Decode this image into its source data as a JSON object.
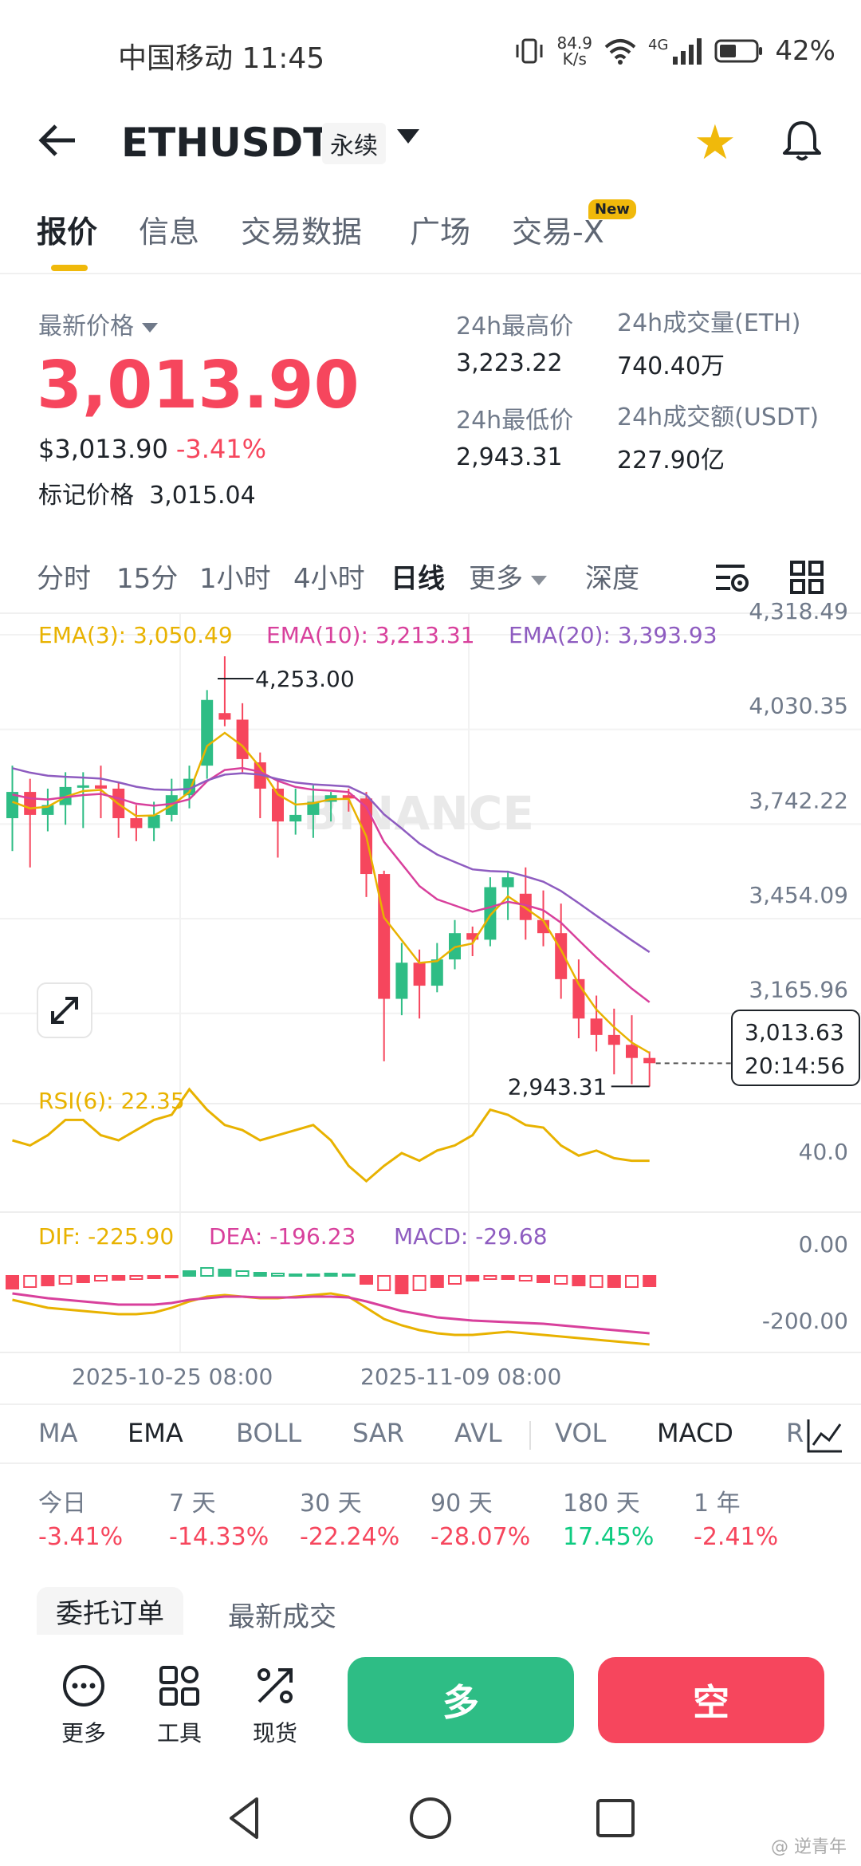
{
  "status_bar": {
    "carrier_time": "中国移动 11:45",
    "net_speed_value": "84.9",
    "net_speed_unit": "K/s",
    "network": "4G",
    "battery": "42%"
  },
  "header": {
    "symbol": "ETHUSDT",
    "contract_type": "永续"
  },
  "tabs": [
    {
      "label": "报价"
    },
    {
      "label": "信息"
    },
    {
      "label": "交易数据"
    },
    {
      "label": "广场"
    },
    {
      "label": "交易-X"
    }
  ],
  "new_badge": "New",
  "price": {
    "latest_label": "最新价格",
    "last_price": "3,013.90",
    "usd_price": "$3,013.90",
    "change": "-3.41%",
    "mark_label": "标记价格",
    "mark_price": "3,015.04"
  },
  "stats": {
    "high_label": "24h最高价",
    "high": "3,223.22",
    "low_label": "24h最低价",
    "low": "2,943.31",
    "vol_label": "24h成交量(ETH)",
    "vol": "740.40万",
    "turnover_label": "24h成交额(USDT)",
    "turnover": "227.90亿"
  },
  "intervals": [
    "分时",
    "15分",
    "1小时",
    "4小时",
    "日线",
    "更多",
    "深度"
  ],
  "chart_data": {
    "type": "candlestick",
    "interval": "日线",
    "price_axis_ticks": [
      "4,318.49",
      "4,030.35",
      "3,742.22",
      "3,454.09",
      "3,165.96"
    ],
    "ylim": [
      2920,
      4318.49
    ],
    "ema_labels": {
      "ema3": "EMA(3): 3,050.49",
      "ema10": "EMA(10): 3,213.31",
      "ema20": "EMA(20): 3,393.93"
    },
    "high_annotation": "4,253.00",
    "low_annotation": "2,943.31",
    "current_price_tag": "3,013.63",
    "countdown": "20:14:56",
    "watermark": "BINANCE",
    "candles": [
      {
        "o": 3760,
        "c": 3840,
        "h": 3920,
        "l": 3660
      },
      {
        "o": 3840,
        "c": 3770,
        "h": 3880,
        "l": 3610
      },
      {
        "o": 3770,
        "c": 3800,
        "h": 3850,
        "l": 3720
      },
      {
        "o": 3800,
        "c": 3855,
        "h": 3900,
        "l": 3740
      },
      {
        "o": 3855,
        "c": 3860,
        "h": 3900,
        "l": 3730
      },
      {
        "o": 3860,
        "c": 3850,
        "h": 3920,
        "l": 3760
      },
      {
        "o": 3850,
        "c": 3760,
        "h": 3870,
        "l": 3700
      },
      {
        "o": 3760,
        "c": 3730,
        "h": 3800,
        "l": 3690
      },
      {
        "o": 3730,
        "c": 3770,
        "h": 3810,
        "l": 3690
      },
      {
        "o": 3770,
        "c": 3830,
        "h": 3880,
        "l": 3750
      },
      {
        "o": 3830,
        "c": 3880,
        "h": 3920,
        "l": 3790
      },
      {
        "o": 3920,
        "c": 4120,
        "h": 4150,
        "l": 3880
      },
      {
        "o": 4080,
        "c": 4060,
        "h": 4253,
        "l": 4040
      },
      {
        "o": 4060,
        "c": 3940,
        "h": 4110,
        "l": 3900
      },
      {
        "o": 3930,
        "c": 3850,
        "h": 3960,
        "l": 3760
      },
      {
        "o": 3850,
        "c": 3750,
        "h": 3880,
        "l": 3640
      },
      {
        "o": 3750,
        "c": 3770,
        "h": 3850,
        "l": 3710
      },
      {
        "o": 3770,
        "c": 3810,
        "h": 3860,
        "l": 3700
      },
      {
        "o": 3810,
        "c": 3830,
        "h": 3840,
        "l": 3750
      },
      {
        "o": 3830,
        "c": 3820,
        "h": 3850,
        "l": 3780
      },
      {
        "o": 3820,
        "c": 3590,
        "h": 3840,
        "l": 3520
      },
      {
        "o": 3590,
        "c": 3210,
        "h": 3600,
        "l": 3020
      },
      {
        "o": 3210,
        "c": 3320,
        "h": 3380,
        "l": 3160
      },
      {
        "o": 3320,
        "c": 3250,
        "h": 3360,
        "l": 3150
      },
      {
        "o": 3250,
        "c": 3330,
        "h": 3380,
        "l": 3230
      },
      {
        "o": 3330,
        "c": 3410,
        "h": 3450,
        "l": 3300
      },
      {
        "o": 3410,
        "c": 3390,
        "h": 3430,
        "l": 3340
      },
      {
        "o": 3390,
        "c": 3550,
        "h": 3580,
        "l": 3370
      },
      {
        "o": 3550,
        "c": 3580,
        "h": 3600,
        "l": 3450
      },
      {
        "o": 3530,
        "c": 3450,
        "h": 3610,
        "l": 3390
      },
      {
        "o": 3450,
        "c": 3410,
        "h": 3540,
        "l": 3370
      },
      {
        "o": 3410,
        "c": 3270,
        "h": 3500,
        "l": 3210
      },
      {
        "o": 3270,
        "c": 3150,
        "h": 3330,
        "l": 3090
      },
      {
        "o": 3150,
        "c": 3100,
        "h": 3220,
        "l": 3050
      },
      {
        "o": 3100,
        "c": 3070,
        "h": 3180,
        "l": 2980
      },
      {
        "o": 3070,
        "c": 3030,
        "h": 3160,
        "l": 2950
      },
      {
        "o": 3030,
        "c": 3014,
        "h": 3050,
        "l": 2943
      }
    ],
    "rsi_label": "RSI(6): 22.35",
    "rsi_tick": "40.0",
    "macd_labels": {
      "dif": "DIF: -225.90",
      "dea": "DEA: -196.23",
      "macd": "MACD: -29.68"
    },
    "macd_ticks": [
      "0.00",
      "-200.00"
    ],
    "x_labels": [
      "2025-10-25 08:00",
      "2025-11-09 08:00"
    ]
  },
  "indicators": [
    "MA",
    "EMA",
    "BOLL",
    "SAR",
    "AVL",
    "VOL",
    "MACD",
    "R"
  ],
  "performance": [
    {
      "label": "今日",
      "value": "-3.41%"
    },
    {
      "label": "7 天",
      "value": "-14.33%"
    },
    {
      "label": "30 天",
      "value": "-22.24%"
    },
    {
      "label": "90 天",
      "value": "-28.07%"
    },
    {
      "label": "180 天",
      "value": "17.45%"
    },
    {
      "label": "1 年",
      "value": "-2.41%"
    }
  ],
  "order_tabs": [
    "委托订单",
    "最新成交"
  ],
  "bottom": {
    "more": "更多",
    "tools": "工具",
    "spot": "现货",
    "long": "多",
    "short": "空"
  },
  "corner_watermark": "@ 逆青年",
  "colors": {
    "up": "#2ebd85",
    "down": "#f6465d",
    "accent": "#f0b90b",
    "ema3": "#e8b200",
    "ema10": "#d8409c",
    "ema20": "#8e5cc0"
  }
}
